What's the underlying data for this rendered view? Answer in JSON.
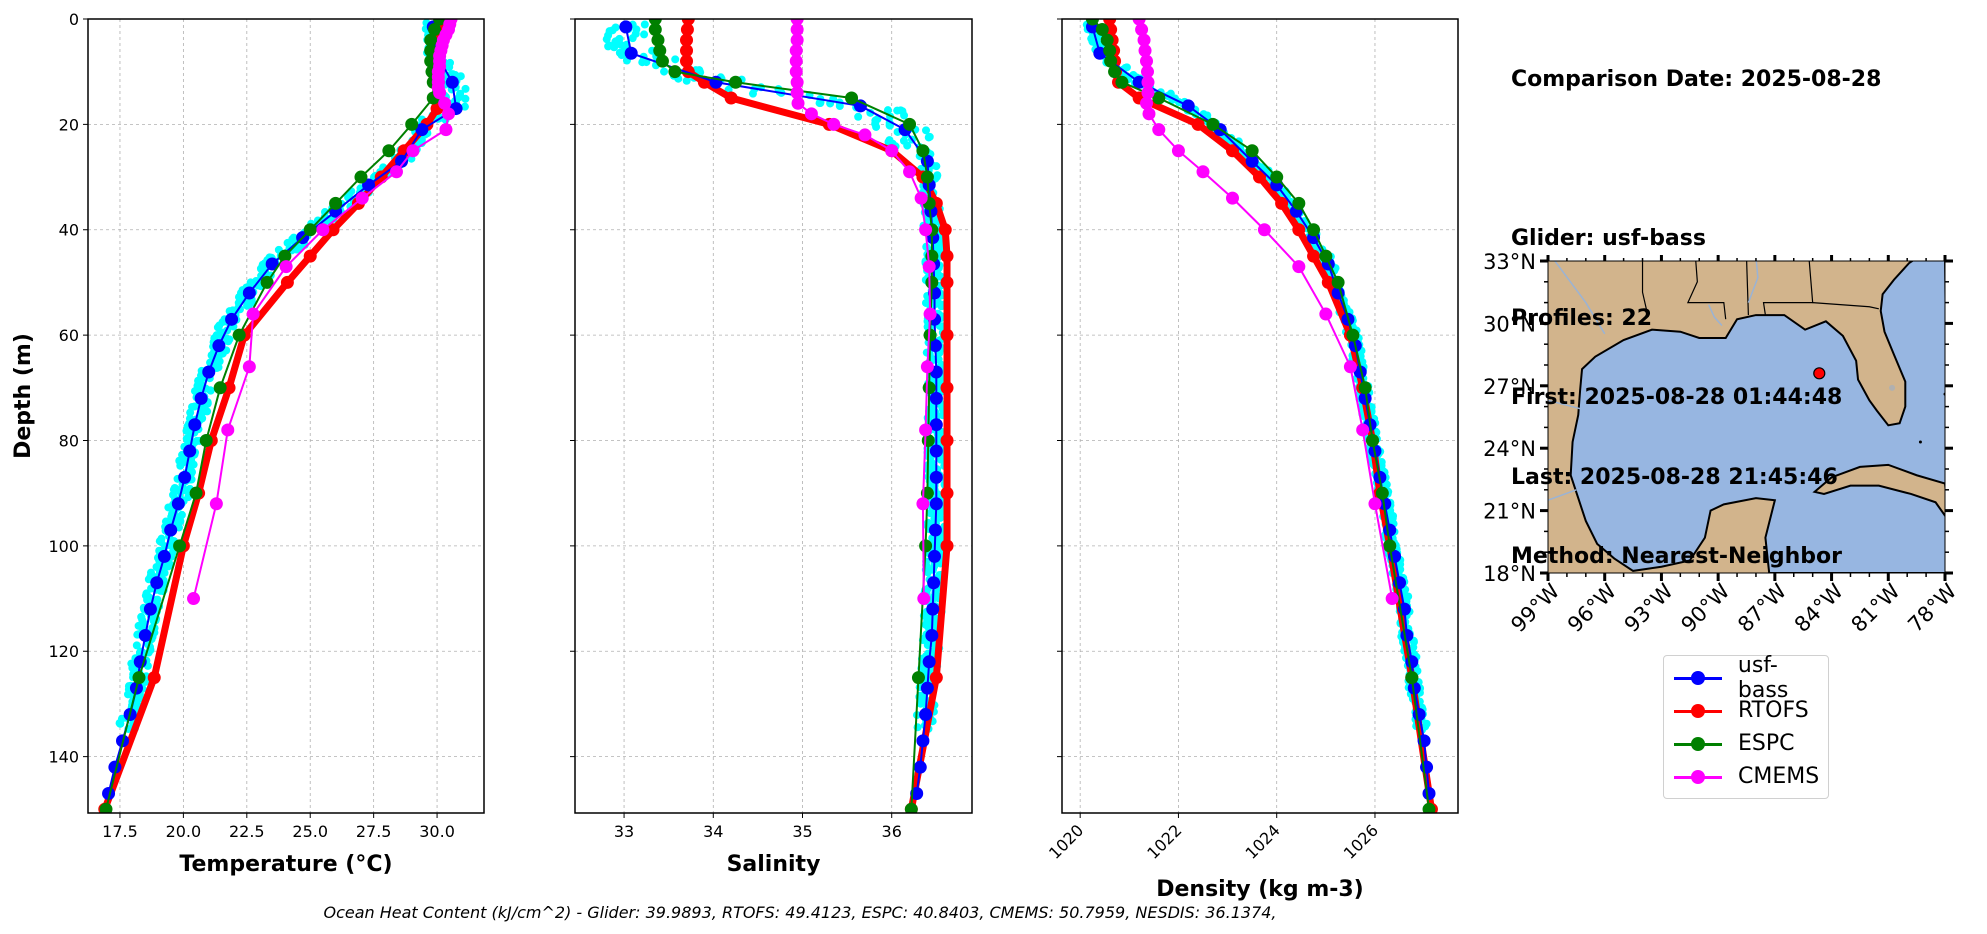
{
  "info": {
    "comparison_date": "Comparison Date: 2025-08-28",
    "glider": "Glider: usf-bass",
    "profiles": "Profiles: 22",
    "first": "First: 2025-08-28 01:44:48",
    "last": "Last: 2025-08-28 21:45:46",
    "method": "Method: Nearest-Neighbor"
  },
  "legend": [
    {
      "name": "usf-bass",
      "color": "#0000ff"
    },
    {
      "name": "RTOFS",
      "color": "#ff0000"
    },
    {
      "name": "ESPC",
      "color": "#008000"
    },
    {
      "name": "CMEMS",
      "color": "#ff00ff"
    }
  ],
  "footer": "Ocean Heat Content (kJ/cm^2) - Glider: 39.9893,  RTOFS: 49.4123,  ESPC: 40.8403,  CMEMS: 50.7959,  NESDIS: 36.1374,",
  "colors": {
    "glider_scatter": "#00ffff",
    "glider": "#0000ff",
    "rtofs": "#ff0000",
    "espc": "#008000",
    "cmems": "#ff00ff",
    "land": "#d2b48c",
    "ocean": "#97b6e1"
  },
  "chart_data": [
    {
      "type": "line",
      "title": "",
      "xlabel": "Temperature (°C)",
      "ylabel": "Depth (m)",
      "xlim": [
        16.24,
        31.85
      ],
      "ylim": [
        150.7,
        0
      ],
      "xticks": [
        "17.5",
        "20.0",
        "22.5",
        "25.0",
        "27.5",
        "30.0"
      ],
      "xtick_values": [
        17.5,
        20.0,
        22.5,
        25.0,
        27.5,
        30.0
      ],
      "yticks": [
        "0",
        "20",
        "40",
        "60",
        "80",
        "100",
        "120",
        "140"
      ],
      "ytick_values": [
        0,
        20,
        40,
        60,
        80,
        100,
        120,
        140
      ],
      "grid": true,
      "series": [
        {
          "name": "usf-bass",
          "depth": [
            1.5,
            6,
            12,
            17,
            21,
            27,
            31.5,
            36.5,
            41.5,
            46.5,
            52,
            57,
            62,
            67,
            72,
            77,
            82,
            87,
            92,
            97,
            102,
            107,
            112,
            117,
            122,
            127,
            132,
            137,
            142,
            147
          ],
          "values": [
            29.85,
            29.9,
            30.6,
            30.75,
            29.4,
            28.6,
            27.3,
            26.0,
            24.7,
            23.5,
            22.6,
            21.9,
            21.4,
            21.0,
            20.7,
            20.45,
            20.25,
            20.05,
            19.8,
            19.5,
            19.25,
            18.95,
            18.7,
            18.5,
            18.3,
            18.15,
            17.9,
            17.6,
            17.3,
            17.05
          ]
        },
        {
          "name": "RTOFS",
          "depth": [
            0,
            2,
            4,
            6,
            8,
            10,
            12,
            15,
            17,
            20,
            25,
            30,
            35,
            40,
            45,
            50,
            60,
            70,
            80,
            90,
            100,
            125,
            150
          ],
          "values": [
            30.2,
            30.15,
            30.1,
            30.1,
            30.05,
            30.05,
            30.05,
            30.0,
            30.0,
            29.6,
            28.7,
            27.8,
            26.9,
            25.9,
            25.0,
            24.1,
            22.4,
            21.8,
            21.1,
            20.6,
            20.0,
            18.85,
            16.9
          ]
        },
        {
          "name": "ESPC",
          "depth": [
            0,
            2,
            4,
            6,
            8,
            10,
            12,
            15,
            20,
            25,
            30,
            35,
            40,
            45,
            50,
            60,
            70,
            80,
            90,
            100,
            125,
            150
          ],
          "values": [
            30.1,
            29.9,
            29.75,
            29.75,
            29.75,
            29.8,
            29.85,
            29.85,
            29.0,
            28.1,
            27.0,
            26.0,
            25.0,
            24.0,
            23.3,
            22.2,
            21.45,
            20.9,
            20.5,
            19.85,
            18.25,
            16.95
          ]
        },
        {
          "name": "CMEMS",
          "depth": [
            0,
            1,
            2,
            3,
            4,
            5,
            6,
            7,
            8,
            9,
            10,
            11,
            12,
            13,
            14,
            16,
            18,
            21,
            25,
            29,
            34,
            40,
            47,
            56,
            66,
            78,
            92,
            110
          ],
          "values": [
            30.55,
            30.5,
            30.45,
            30.35,
            30.25,
            30.2,
            30.15,
            30.1,
            30.1,
            30.1,
            30.05,
            30.05,
            30.05,
            30.05,
            30.1,
            30.3,
            30.45,
            30.35,
            29.05,
            28.4,
            27.05,
            25.5,
            24.05,
            22.75,
            22.6,
            21.75,
            21.3,
            20.4
          ]
        }
      ]
    },
    {
      "type": "line",
      "title": "",
      "xlabel": "Salinity",
      "ylabel": "",
      "xlim": [
        32.45,
        36.9
      ],
      "ylim": [
        150.7,
        0
      ],
      "xticks": [
        "33",
        "34",
        "35",
        "36"
      ],
      "xtick_values": [
        33,
        34,
        35,
        36
      ],
      "yticks": [],
      "ytick_values": [
        0,
        20,
        40,
        60,
        80,
        100,
        120,
        140
      ],
      "grid": true,
      "series": [
        {
          "name": "usf-bass",
          "depth": [
            1.5,
            6.5,
            12,
            16.5,
            21,
            27,
            31.5,
            36.5,
            41.5,
            46.5,
            52,
            57,
            62,
            67,
            72,
            77,
            82,
            87,
            92,
            97,
            102,
            107,
            112,
            117,
            122,
            127,
            132,
            137,
            142,
            147
          ],
          "values": [
            33.02,
            33.08,
            34.03,
            35.65,
            36.15,
            36.4,
            36.42,
            36.44,
            36.46,
            36.47,
            36.48,
            36.48,
            36.49,
            36.5,
            36.5,
            36.5,
            36.5,
            36.5,
            36.5,
            36.49,
            36.48,
            36.47,
            36.46,
            36.45,
            36.42,
            36.4,
            36.38,
            36.35,
            36.32,
            36.28
          ]
        },
        {
          "name": "RTOFS",
          "depth": [
            0,
            2,
            4,
            6,
            8,
            10,
            12,
            15,
            20,
            25,
            30,
            35,
            40,
            45,
            50,
            60,
            70,
            80,
            90,
            100,
            125,
            150
          ],
          "values": [
            33.72,
            33.71,
            33.7,
            33.7,
            33.7,
            33.72,
            33.9,
            34.2,
            35.3,
            36.0,
            36.35,
            36.5,
            36.6,
            36.62,
            36.62,
            36.62,
            36.62,
            36.62,
            36.62,
            36.62,
            36.5,
            36.22
          ]
        },
        {
          "name": "ESPC",
          "depth": [
            0,
            2,
            4,
            6,
            8,
            10,
            12,
            15,
            20,
            25,
            30,
            35,
            40,
            45,
            50,
            60,
            70,
            80,
            90,
            100,
            125,
            150
          ],
          "values": [
            33.35,
            33.35,
            33.38,
            33.4,
            33.43,
            33.57,
            34.25,
            35.55,
            36.2,
            36.35,
            36.4,
            36.42,
            36.45,
            36.45,
            36.45,
            36.43,
            36.42,
            36.41,
            36.4,
            36.38,
            36.3,
            36.22
          ]
        },
        {
          "name": "CMEMS",
          "depth": [
            0,
            2,
            4,
            6,
            8,
            10,
            12,
            14,
            16,
            18,
            20,
            22,
            25,
            29,
            34,
            40,
            47,
            56,
            66,
            78,
            92,
            110
          ],
          "values": [
            34.94,
            34.94,
            34.94,
            34.93,
            34.93,
            34.93,
            34.94,
            34.94,
            34.95,
            35.1,
            35.35,
            35.7,
            36.0,
            36.2,
            36.33,
            36.38,
            36.42,
            36.43,
            36.4,
            36.38,
            36.35,
            36.36
          ]
        }
      ]
    },
    {
      "type": "line",
      "title": "",
      "xlabel": "Density (kg m-3)",
      "ylabel": "",
      "xlim": [
        1019.63,
        1027.69
      ],
      "ylim": [
        150.7,
        0
      ],
      "xticks": [
        "1020",
        "1022",
        "1024",
        "1026"
      ],
      "xtick_values": [
        1020,
        1022,
        1024,
        1026
      ],
      "yticks": [],
      "ytick_values": [
        0,
        20,
        40,
        60,
        80,
        100,
        120,
        140
      ],
      "grid": true,
      "series": [
        {
          "name": "usf-bass",
          "depth": [
            1.5,
            6.5,
            12,
            16.5,
            21,
            27,
            31.5,
            36.5,
            41.5,
            46.5,
            52,
            57,
            62,
            67,
            72,
            77,
            82,
            87,
            92,
            97,
            102,
            107,
            112,
            117,
            122,
            127,
            132,
            137,
            142,
            147
          ],
          "values": [
            1020.25,
            1020.4,
            1021.2,
            1022.2,
            1022.85,
            1023.5,
            1024.0,
            1024.4,
            1024.75,
            1025.05,
            1025.25,
            1025.45,
            1025.6,
            1025.7,
            1025.8,
            1025.9,
            1026.0,
            1026.1,
            1026.2,
            1026.3,
            1026.4,
            1026.5,
            1026.6,
            1026.65,
            1026.75,
            1026.8,
            1026.9,
            1027.0,
            1027.05,
            1027.1
          ]
        },
        {
          "name": "RTOFS",
          "depth": [
            0,
            2,
            4,
            6,
            8,
            10,
            12,
            15,
            20,
            25,
            30,
            35,
            40,
            45,
            50,
            60,
            70,
            80,
            90,
            100,
            125,
            150
          ],
          "values": [
            1020.6,
            1020.62,
            1020.65,
            1020.68,
            1020.7,
            1020.72,
            1020.78,
            1021.2,
            1022.4,
            1023.1,
            1023.65,
            1024.1,
            1024.45,
            1024.75,
            1025.05,
            1025.5,
            1025.75,
            1025.95,
            1026.1,
            1026.3,
            1026.75,
            1027.15
          ]
        },
        {
          "name": "ESPC",
          "depth": [
            0,
            2,
            4,
            6,
            8,
            10,
            12,
            15,
            20,
            25,
            30,
            35,
            40,
            45,
            50,
            60,
            70,
            80,
            90,
            100,
            125,
            150
          ],
          "values": [
            1020.25,
            1020.45,
            1020.55,
            1020.6,
            1020.62,
            1020.7,
            1020.85,
            1021.6,
            1022.7,
            1023.5,
            1024.0,
            1024.45,
            1024.75,
            1025.0,
            1025.25,
            1025.55,
            1025.8,
            1025.95,
            1026.15,
            1026.3,
            1026.75,
            1027.1
          ]
        },
        {
          "name": "CMEMS",
          "depth": [
            0,
            2,
            4,
            6,
            8,
            10,
            12,
            14,
            16,
            18,
            21,
            25,
            29,
            34,
            40,
            47,
            56,
            66,
            78,
            92,
            110
          ],
          "values": [
            1021.2,
            1021.25,
            1021.3,
            1021.32,
            1021.35,
            1021.37,
            1021.38,
            1021.38,
            1021.35,
            1021.4,
            1021.6,
            1022.0,
            1022.5,
            1023.1,
            1023.75,
            1024.45,
            1025.0,
            1025.5,
            1025.75,
            1026.0,
            1026.35
          ]
        }
      ]
    },
    {
      "type": "map",
      "title": "",
      "xlim": [
        -99,
        -78
      ],
      "ylim": [
        18,
        33
      ],
      "xticks": [
        "99°W",
        "96°W",
        "93°W",
        "90°W",
        "87°W",
        "84°W",
        "81°W",
        "78°W"
      ],
      "xtick_values": [
        -99,
        -96,
        -93,
        -90,
        -87,
        -84,
        -81,
        -78
      ],
      "yticks": [
        "18°N",
        "21°N",
        "24°N",
        "27°N",
        "30°N",
        "33°N"
      ],
      "ytick_values": [
        18,
        21,
        24,
        27,
        30,
        33
      ],
      "glider_location": {
        "lon": -84.65,
        "lat": 27.6,
        "color": "#ff0000"
      }
    }
  ]
}
